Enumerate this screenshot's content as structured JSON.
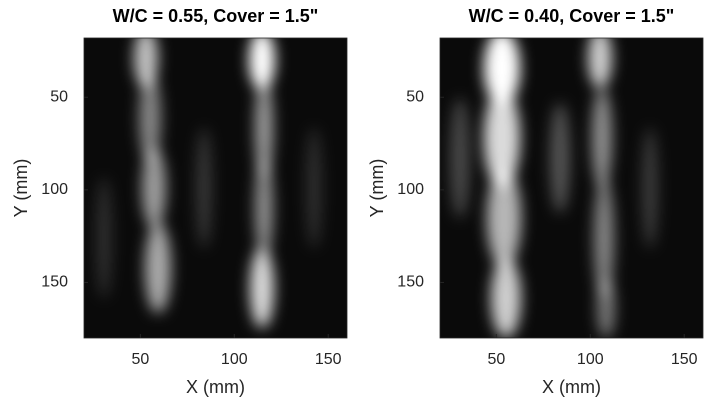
{
  "chart_data": [
    {
      "type": "image",
      "title": "W/C = 0.55,  Cover = 1.5\"",
      "xlabel": "X (mm)",
      "ylabel": "Y (mm)",
      "xlim": [
        20,
        160
      ],
      "ylim": [
        18,
        180
      ],
      "xticks": [
        50,
        100,
        150
      ],
      "yticks": [
        50,
        100,
        150
      ],
      "colormap": "gray"
    },
    {
      "type": "image",
      "title": "W/C = 0.40,  Cover = 1.5\"",
      "xlabel": "X (mm)",
      "ylabel": "Y (mm)",
      "xlim": [
        20,
        160
      ],
      "ylim": [
        18,
        180
      ],
      "xticks": [
        50,
        100,
        150
      ],
      "yticks": [
        50,
        100,
        150
      ],
      "colormap": "gray"
    }
  ]
}
